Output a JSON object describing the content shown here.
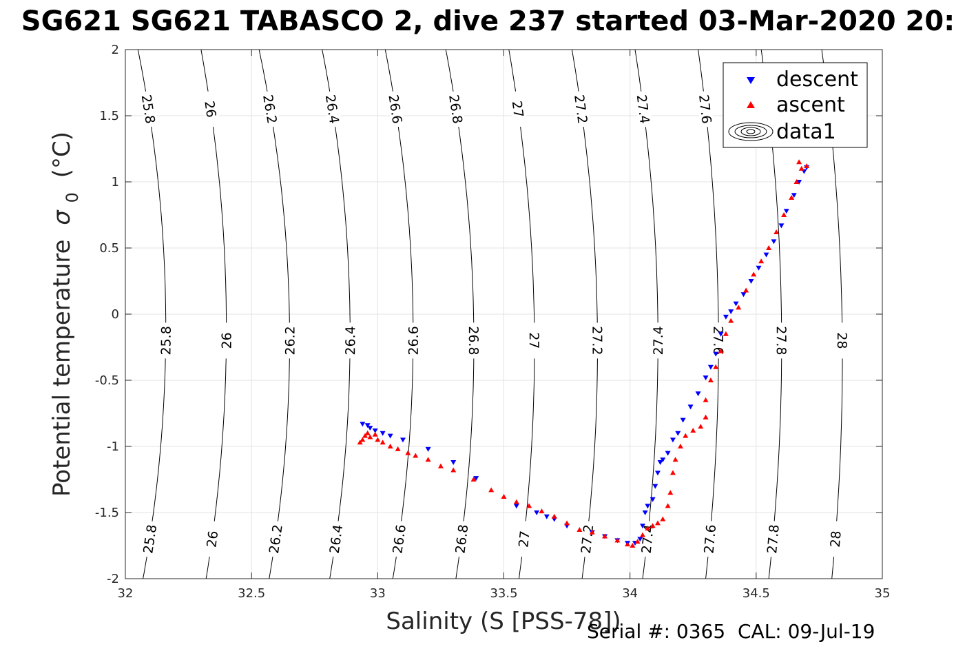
{
  "title": "SG621 SG621 TABASCO 2, dive 237 started 03-Mar-2020 20:",
  "footer": "Serial #: 0365  CAL: 09-Jul-19",
  "chart_data": {
    "type": "scatter",
    "xlabel": "Salinity (S [PSS-78])",
    "ylabel": "Potential temperature",
    "ylabel_symbol": "σ",
    "ylabel_sub": "0",
    "ylabel_unit": "(°C)",
    "xlim": [
      32,
      35
    ],
    "ylim": [
      -2,
      2
    ],
    "xticks": [
      32,
      32.5,
      33,
      33.5,
      34,
      34.5,
      35
    ],
    "xtick_labels": [
      "32",
      "32.5",
      "33",
      "33.5",
      "34",
      "34.5",
      "35"
    ],
    "yticks": [
      -2,
      -1.5,
      -1,
      -0.5,
      0,
      0.5,
      1,
      1.5,
      2
    ],
    "ytick_labels": [
      "-2",
      "-1.5",
      "-1",
      "-0.5",
      "0",
      "0.5",
      "1",
      "1.5",
      "2"
    ],
    "grid": true,
    "legend_position": "top-right",
    "legend": [
      {
        "label": "descent",
        "marker": "triangle-down",
        "color": "#0000ff"
      },
      {
        "label": "ascent",
        "marker": "triangle-up",
        "color": "#ff0000"
      },
      {
        "label": "data1",
        "marker": "contour",
        "color": "#000000"
      }
    ],
    "density_contours": {
      "levels": [
        25.8,
        26,
        26.2,
        26.4,
        26.6,
        26.8,
        27,
        27.2,
        27.4,
        27.6,
        27.8,
        28
      ],
      "labels": [
        "25.8",
        "26",
        "26.2",
        "26.4",
        "26.6",
        "26.8",
        "27",
        "27.2",
        "27.4",
        "27.6",
        "27.8",
        "28"
      ],
      "salinity_at_theta_minus2": [
        32.07,
        32.32,
        32.57,
        32.81,
        33.06,
        33.31,
        33.56,
        33.81,
        34.05,
        34.3,
        34.55,
        34.8
      ],
      "salinity_at_theta_2": [
        32.05,
        32.3,
        32.53,
        32.78,
        33.03,
        33.27,
        33.52,
        33.77,
        34.02,
        34.27,
        34.52,
        34.76
      ],
      "salinity_at_theta_0": [
        32.16,
        32.4,
        32.65,
        32.89,
        33.14,
        33.38,
        33.62,
        33.87,
        34.11,
        34.35,
        34.6,
        34.84
      ],
      "label_theta_high": 1.55,
      "label_theta_mid": -0.2,
      "label_theta_low": -1.7
    },
    "series": [
      {
        "name": "descent",
        "color": "#0000ff",
        "marker": "triangle-down",
        "points": [
          [
            32.94,
            -0.83
          ],
          [
            32.96,
            -0.84
          ],
          [
            32.97,
            -0.86
          ],
          [
            32.99,
            -0.88
          ],
          [
            33.02,
            -0.9
          ],
          [
            33.05,
            -0.92
          ],
          [
            33.1,
            -0.95
          ],
          [
            33.2,
            -1.02
          ],
          [
            33.3,
            -1.12
          ],
          [
            33.39,
            -1.24
          ],
          [
            33.55,
            -1.45
          ],
          [
            33.63,
            -1.5
          ],
          [
            33.67,
            -1.53
          ],
          [
            33.7,
            -1.55
          ],
          [
            33.75,
            -1.6
          ],
          [
            33.85,
            -1.65
          ],
          [
            33.9,
            -1.68
          ],
          [
            33.95,
            -1.71
          ],
          [
            33.99,
            -1.73
          ],
          [
            34.02,
            -1.73
          ],
          [
            34.04,
            -1.7
          ],
          [
            34.05,
            -1.6
          ],
          [
            34.06,
            -1.5
          ],
          [
            34.07,
            -1.45
          ],
          [
            34.09,
            -1.4
          ],
          [
            34.1,
            -1.3
          ],
          [
            34.11,
            -1.2
          ],
          [
            34.12,
            -1.12
          ],
          [
            34.13,
            -1.1
          ],
          [
            34.15,
            -1.05
          ],
          [
            34.17,
            -0.95
          ],
          [
            34.19,
            -0.9
          ],
          [
            34.21,
            -0.8
          ],
          [
            34.24,
            -0.7
          ],
          [
            34.27,
            -0.6
          ],
          [
            34.3,
            -0.48
          ],
          [
            34.32,
            -0.4
          ],
          [
            34.34,
            -0.3
          ],
          [
            34.36,
            -0.15
          ],
          [
            34.38,
            -0.02
          ],
          [
            34.4,
            0.02
          ],
          [
            34.42,
            0.08
          ],
          [
            34.45,
            0.15
          ],
          [
            34.48,
            0.25
          ],
          [
            34.51,
            0.35
          ],
          [
            34.54,
            0.45
          ],
          [
            34.57,
            0.55
          ],
          [
            34.6,
            0.67
          ],
          [
            34.62,
            0.78
          ],
          [
            34.65,
            0.9
          ],
          [
            34.67,
            1.0
          ],
          [
            34.69,
            1.08
          ],
          [
            34.7,
            1.11
          ]
        ]
      },
      {
        "name": "ascent",
        "color": "#ff0000",
        "marker": "triangle-up",
        "points": [
          [
            32.93,
            -0.97
          ],
          [
            32.94,
            -0.95
          ],
          [
            32.95,
            -0.92
          ],
          [
            32.96,
            -0.9
          ],
          [
            32.97,
            -0.93
          ],
          [
            32.99,
            -0.91
          ],
          [
            33.0,
            -0.95
          ],
          [
            33.02,
            -0.97
          ],
          [
            33.05,
            -1.0
          ],
          [
            33.08,
            -1.02
          ],
          [
            33.12,
            -1.05
          ],
          [
            33.15,
            -1.07
          ],
          [
            33.2,
            -1.1
          ],
          [
            33.25,
            -1.15
          ],
          [
            33.3,
            -1.18
          ],
          [
            33.38,
            -1.25
          ],
          [
            33.45,
            -1.33
          ],
          [
            33.5,
            -1.38
          ],
          [
            33.55,
            -1.42
          ],
          [
            33.6,
            -1.45
          ],
          [
            33.65,
            -1.49
          ],
          [
            33.7,
            -1.53
          ],
          [
            33.75,
            -1.58
          ],
          [
            33.8,
            -1.63
          ],
          [
            33.85,
            -1.65
          ],
          [
            33.9,
            -1.68
          ],
          [
            33.95,
            -1.71
          ],
          [
            33.99,
            -1.74
          ],
          [
            34.01,
            -1.75
          ],
          [
            34.03,
            -1.72
          ],
          [
            34.05,
            -1.67
          ],
          [
            34.07,
            -1.62
          ],
          [
            34.09,
            -1.6
          ],
          [
            34.11,
            -1.58
          ],
          [
            34.13,
            -1.55
          ],
          [
            34.15,
            -1.45
          ],
          [
            34.16,
            -1.35
          ],
          [
            34.17,
            -1.2
          ],
          [
            34.18,
            -1.1
          ],
          [
            34.2,
            -1.0
          ],
          [
            34.22,
            -0.92
          ],
          [
            34.25,
            -0.88
          ],
          [
            34.28,
            -0.85
          ],
          [
            34.3,
            -0.78
          ],
          [
            34.3,
            -0.65
          ],
          [
            34.32,
            -0.5
          ],
          [
            34.34,
            -0.4
          ],
          [
            34.36,
            -0.28
          ],
          [
            34.38,
            -0.15
          ],
          [
            34.4,
            -0.05
          ],
          [
            34.43,
            0.05
          ],
          [
            34.46,
            0.18
          ],
          [
            34.49,
            0.3
          ],
          [
            34.52,
            0.4
          ],
          [
            34.55,
            0.5
          ],
          [
            34.58,
            0.62
          ],
          [
            34.61,
            0.75
          ],
          [
            34.64,
            0.88
          ],
          [
            34.66,
            1.0
          ],
          [
            34.68,
            1.1
          ],
          [
            34.67,
            1.15
          ],
          [
            34.7,
            1.12
          ]
        ]
      }
    ]
  }
}
